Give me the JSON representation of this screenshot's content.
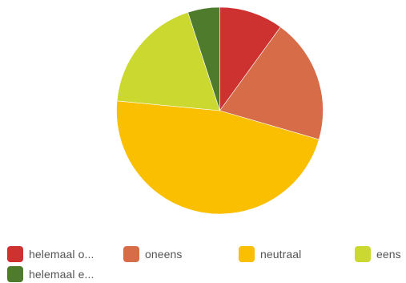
{
  "chart_data": {
    "type": "pie",
    "title": "",
    "slices": [
      {
        "label": "helemaal o...",
        "value": 10,
        "color": "#cd3130"
      },
      {
        "label": "oneens",
        "value": 19.5,
        "color": "#d66d48"
      },
      {
        "label": "neutraal",
        "value": 47,
        "color": "#f9bf00"
      },
      {
        "label": "eens",
        "value": 18.5,
        "color": "#cbd830"
      },
      {
        "label": "helemaal e...",
        "value": 5,
        "color": "#4e7c2c"
      }
    ],
    "start_angle_deg": 0,
    "direction": "clockwise",
    "legend_position": "bottom"
  }
}
